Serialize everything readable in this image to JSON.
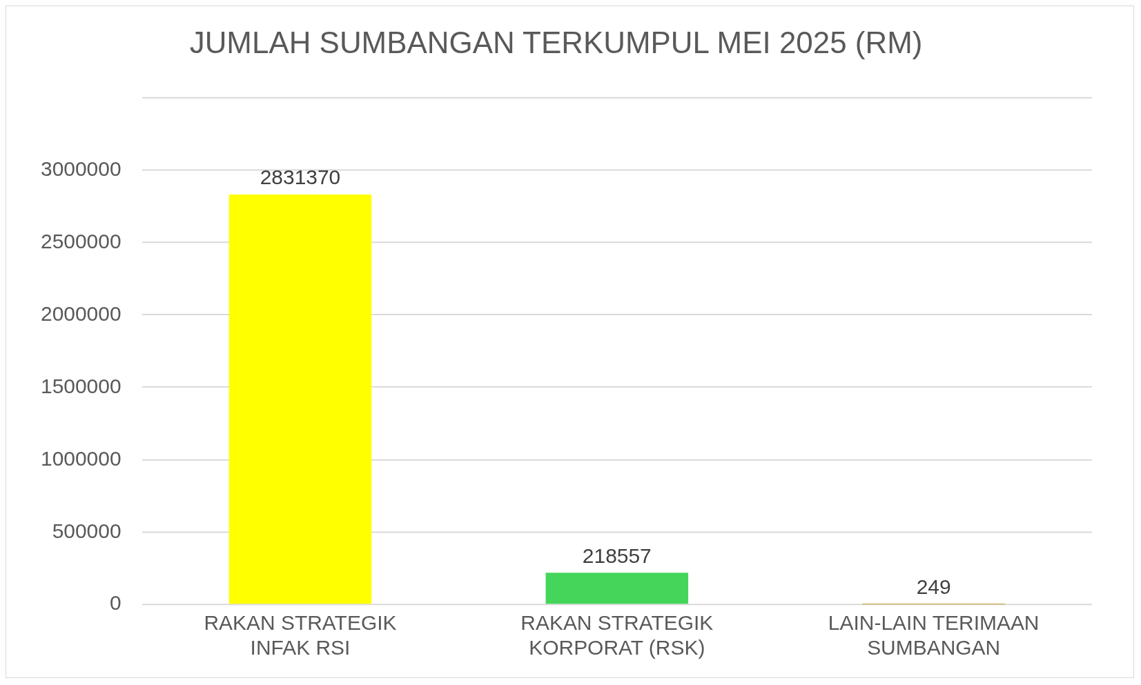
{
  "chart_data": {
    "type": "bar",
    "title": "JUMLAH SUMBANGAN TERKUMPUL MEI 2025 (RM)",
    "categories": [
      "RAKAN STRATEGIK INFAK RSI",
      "RAKAN STRATEGIK KORPORAT (RSK)",
      "LAIN-LAIN TERIMAAN SUMBANGAN"
    ],
    "values": [
      2831370,
      218557,
      249
    ],
    "colors": [
      "#ffff00",
      "#44d55a",
      "#c09000"
    ],
    "ylim": [
      0,
      3500000
    ],
    "yticks": [
      0,
      500000,
      1000000,
      1500000,
      2000000,
      2500000,
      3000000,
      {
        "value": 3500000,
        "label": null
      }
    ],
    "grid": "y",
    "data_labels": true,
    "legend": false
  }
}
